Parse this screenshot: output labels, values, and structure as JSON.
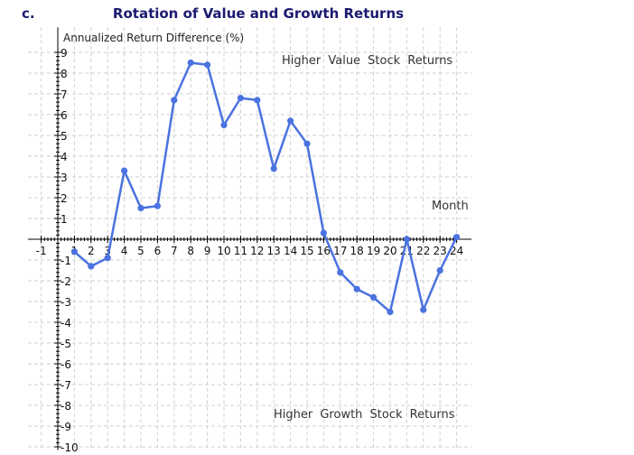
{
  "chart_data": {
    "type": "line",
    "panel_label": "c.",
    "title": "Rotation of Value and Growth Returns",
    "ylabel": "Annualized Return Difference (%)",
    "xlabel": "Month",
    "annotations": {
      "top": "Higher Value Stock Returns",
      "bottom": "Higher Growth Stock Returns"
    },
    "xlim": [
      -1,
      24
    ],
    "ylim": [
      -10,
      9
    ],
    "grid": true,
    "x_ticks": [
      -1,
      1,
      2,
      3,
      4,
      5,
      6,
      7,
      8,
      9,
      10,
      11,
      12,
      13,
      14,
      15,
      16,
      17,
      18,
      19,
      20,
      21,
      22,
      23,
      24
    ],
    "y_ticks": [
      -10,
      -9,
      -8,
      -7,
      -6,
      -5,
      -4,
      -3,
      -2,
      -1,
      1,
      2,
      3,
      4,
      5,
      6,
      7,
      8,
      9
    ],
    "series": [
      {
        "name": "Annualized Return Difference",
        "color": "#4a72e0",
        "x": [
          1,
          2,
          3,
          4,
          5,
          6,
          7,
          8,
          9,
          10,
          11,
          12,
          13,
          14,
          15,
          16,
          17,
          18,
          19,
          20,
          21,
          22,
          23,
          24
        ],
        "values": [
          -0.6,
          -1.3,
          -0.9,
          3.3,
          1.5,
          1.6,
          6.7,
          8.5,
          8.4,
          5.5,
          6.8,
          6.7,
          3.4,
          5.7,
          4.6,
          0.3,
          -1.6,
          -2.4,
          -2.8,
          -3.5,
          0.0,
          -3.4,
          -1.5,
          0.1
        ]
      }
    ]
  }
}
